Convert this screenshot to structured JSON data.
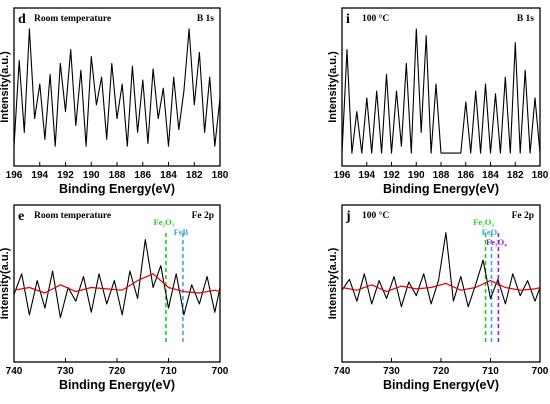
{
  "chart_data": [
    {
      "type": "line",
      "panel_label": "d",
      "condition": "Room temperature",
      "element": "B 1s",
      "xlabel": "Binding Energy(eV)",
      "ylabel": "Intensity(a.u.)",
      "xlim": [
        196,
        180
      ],
      "x_ticks": [
        "196",
        "194",
        "192",
        "190",
        "188",
        "186",
        "184",
        "182",
        "180"
      ],
      "grid": false,
      "series": [
        {
          "color": "#000000",
          "x": [
            196,
            195.6,
            195.2,
            194.8,
            194.4,
            194.0,
            193.6,
            193.2,
            192.8,
            192.4,
            192.0,
            191.6,
            191.2,
            190.8,
            190.4,
            190.0,
            189.6,
            189.2,
            188.8,
            188.4,
            188.0,
            187.6,
            187.2,
            186.8,
            186.4,
            186.0,
            185.6,
            185.2,
            184.8,
            184.4,
            184.0,
            183.6,
            183.2,
            182.8,
            182.4,
            182.0,
            181.6,
            181.2,
            180.8,
            180.4,
            180
          ],
          "y": [
            0.1,
            0.72,
            0.2,
            0.95,
            0.3,
            0.55,
            0.15,
            0.62,
            0.1,
            0.7,
            0.35,
            0.8,
            0.25,
            0.65,
            0.1,
            0.75,
            0.4,
            0.6,
            0.15,
            0.7,
            0.3,
            0.55,
            0.1,
            0.68,
            0.2,
            0.58,
            0.12,
            0.66,
            0.3,
            0.52,
            0.1,
            0.6,
            0.22,
            0.5,
            0.95,
            0.4,
            0.78,
            0.2,
            0.6,
            0.1,
            0.45
          ]
        }
      ]
    },
    {
      "type": "line",
      "panel_label": "i",
      "condition": "100 °C",
      "element": "B 1s",
      "xlabel": "Binding Energy(eV)",
      "ylabel": "Intensity(a.u.)",
      "xlim": [
        196,
        180
      ],
      "x_ticks": [
        "196",
        "194",
        "192",
        "190",
        "188",
        "186",
        "184",
        "182",
        "180"
      ],
      "grid": false,
      "series": [
        {
          "color": "#000000",
          "x": [
            196,
            195.6,
            195.2,
            194.8,
            194.4,
            194.0,
            193.6,
            193.2,
            192.8,
            192.4,
            192.0,
            191.6,
            191.2,
            190.8,
            190.4,
            190.0,
            189.6,
            189.2,
            188.8,
            188.4,
            188.0,
            187.6,
            187.2,
            186.8,
            186.4,
            186.0,
            185.6,
            185.2,
            184.8,
            184.4,
            184.0,
            183.6,
            183.2,
            182.8,
            182.4,
            182.0,
            181.6,
            181.2,
            180.8,
            180.4,
            180
          ],
          "y": [
            0.05,
            0.8,
            0.05,
            0.35,
            0.05,
            0.45,
            0.05,
            0.5,
            0.05,
            0.62,
            0.05,
            0.5,
            0.1,
            0.7,
            0.05,
            0.95,
            0.2,
            0.9,
            0.05,
            0.55,
            0.05,
            0.05,
            0.05,
            0.05,
            0.05,
            0.42,
            0.05,
            0.5,
            0.05,
            0.55,
            0.05,
            0.48,
            0.05,
            0.6,
            0.05,
            0.85,
            0.05,
            0.65,
            0.05,
            0.45,
            0.05
          ]
        }
      ]
    },
    {
      "type": "line",
      "panel_label": "e",
      "condition": "Room temperature",
      "element": "Fe 2p",
      "xlabel": "Binding Energy(eV)",
      "ylabel": "Intensity(a.u.)",
      "xlim": [
        740,
        700
      ],
      "x_ticks": [
        "740",
        "730",
        "720",
        "710",
        "700"
      ],
      "grid": false,
      "annotations": [
        {
          "text": "Fe₂O₃",
          "x": 710.5,
          "color": "#22cc22",
          "dashed": true
        },
        {
          "text": "FeB",
          "x": 707.2,
          "color": "#33aadd",
          "dashed": true
        }
      ],
      "series": [
        {
          "color": "#000000",
          "x": [
            740,
            738.5,
            737,
            735.5,
            734,
            732.5,
            731,
            729.5,
            728,
            726.5,
            725,
            723.5,
            722,
            720.5,
            719,
            717.5,
            716,
            714.5,
            713,
            711.5,
            710,
            708.5,
            707,
            705.5,
            704,
            702.5,
            701,
            700
          ],
          "y": [
            0.45,
            0.6,
            0.3,
            0.55,
            0.35,
            0.62,
            0.28,
            0.5,
            0.4,
            0.58,
            0.32,
            0.6,
            0.38,
            0.55,
            0.3,
            0.62,
            0.42,
            0.85,
            0.5,
            0.66,
            0.35,
            0.6,
            0.3,
            0.52,
            0.38,
            0.58,
            0.32,
            0.5
          ]
        },
        {
          "color": "#dd0000",
          "x": [
            740,
            737,
            734,
            731,
            728,
            725,
            722,
            719,
            716,
            713,
            710,
            707,
            704,
            701,
            700
          ],
          "y": [
            0.48,
            0.5,
            0.46,
            0.52,
            0.47,
            0.5,
            0.49,
            0.48,
            0.55,
            0.6,
            0.5,
            0.47,
            0.46,
            0.48,
            0.47
          ]
        }
      ]
    },
    {
      "type": "line",
      "panel_label": "j",
      "condition": "100 °C",
      "element": "Fe 2p",
      "xlabel": "Binding Energy(eV)",
      "ylabel": "Intensity(a.u.)",
      "xlim": [
        740,
        700
      ],
      "x_ticks": [
        "740",
        "730",
        "720",
        "710",
        "700"
      ],
      "grid": false,
      "annotations": [
        {
          "text": "Fe₂O₃",
          "x": 711.0,
          "color": "#22cc22",
          "dashed": true
        },
        {
          "text": "FeO",
          "x": 709.8,
          "color": "#33aadd",
          "dashed": true
        },
        {
          "text": "Fe₃O₄",
          "x": 708.4,
          "color": "#9922cc",
          "dashed": true
        }
      ],
      "series": [
        {
          "color": "#000000",
          "x": [
            740,
            738.5,
            737,
            735.5,
            734,
            732.5,
            731,
            729.5,
            728,
            726.5,
            725,
            723.5,
            722,
            720.5,
            719,
            717.5,
            716,
            714.5,
            713,
            711.5,
            710,
            708.5,
            707,
            705.5,
            704,
            702.5,
            701,
            700
          ],
          "y": [
            0.48,
            0.56,
            0.4,
            0.6,
            0.38,
            0.55,
            0.42,
            0.58,
            0.36,
            0.54,
            0.44,
            0.6,
            0.38,
            0.55,
            0.9,
            0.4,
            0.58,
            0.36,
            0.52,
            0.7,
            0.42,
            0.56,
            0.38,
            0.6,
            0.44,
            0.55,
            0.4,
            0.5
          ]
        },
        {
          "color": "#dd0000",
          "x": [
            740,
            737,
            734,
            731,
            728,
            725,
            722,
            719,
            716,
            713,
            710,
            707,
            704,
            701,
            700
          ],
          "y": [
            0.5,
            0.48,
            0.52,
            0.47,
            0.51,
            0.49,
            0.5,
            0.53,
            0.48,
            0.5,
            0.55,
            0.5,
            0.48,
            0.49,
            0.5
          ]
        }
      ]
    }
  ]
}
